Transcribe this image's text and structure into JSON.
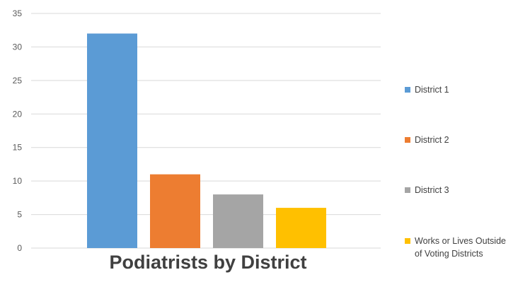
{
  "chart_data": {
    "type": "bar",
    "title": "Podiatrists by District",
    "xlabel": "",
    "ylabel": "",
    "ylim": [
      0,
      35
    ],
    "yticks": [
      0,
      5,
      10,
      15,
      20,
      25,
      30,
      35
    ],
    "grid": true,
    "legend_position": "right",
    "series": [
      {
        "name": "District 1",
        "value": 32,
        "color": "#5B9BD5"
      },
      {
        "name": "District 2",
        "value": 11,
        "color": "#ED7D31"
      },
      {
        "name": "District 3",
        "value": 8,
        "color": "#A5A5A5"
      },
      {
        "name": "Works or Lives Outside of Voting Districts",
        "legend_lines": [
          "Works or Lives Outside",
          "of Voting Districts"
        ],
        "value": 6,
        "color": "#FFC000"
      }
    ]
  }
}
